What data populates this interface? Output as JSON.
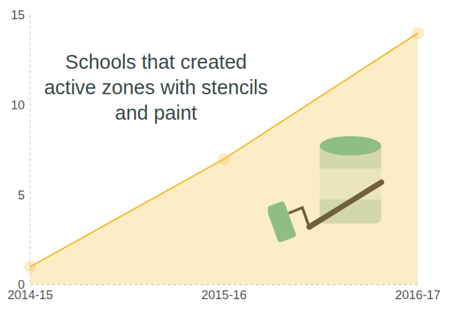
{
  "chart_data": {
    "type": "area",
    "title": "Schools that created active zones with stencils and paint",
    "categories": [
      "2014-15",
      "2015-16",
      "2016-17"
    ],
    "values": [
      1,
      7,
      14
    ],
    "color": "#f5b921",
    "ylim": [
      0,
      15
    ],
    "yticks": [
      0,
      5,
      10,
      15
    ],
    "grid": false,
    "marker": "circle"
  }
}
